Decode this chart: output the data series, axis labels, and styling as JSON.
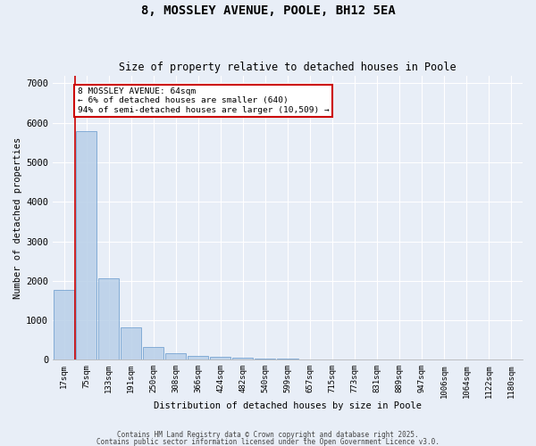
{
  "title1": "8, MOSSLEY AVENUE, POOLE, BH12 5EA",
  "title2": "Size of property relative to detached houses in Poole",
  "xlabel": "Distribution of detached houses by size in Poole",
  "ylabel": "Number of detached properties",
  "categories": [
    "17sqm",
    "75sqm",
    "133sqm",
    "191sqm",
    "250sqm",
    "308sqm",
    "366sqm",
    "424sqm",
    "482sqm",
    "540sqm",
    "599sqm",
    "657sqm",
    "715sqm",
    "773sqm",
    "831sqm",
    "889sqm",
    "947sqm",
    "1006sqm",
    "1064sqm",
    "1122sqm",
    "1180sqm"
  ],
  "values": [
    1780,
    5800,
    2060,
    820,
    330,
    175,
    100,
    70,
    50,
    40,
    30,
    0,
    0,
    0,
    0,
    0,
    0,
    0,
    0,
    0,
    0
  ],
  "bar_color": "#b8cfe8",
  "bar_edge_color": "#6699cc",
  "bar_alpha": 0.85,
  "red_line_color": "#cc0000",
  "annotation_text": "8 MOSSLEY AVENUE: 64sqm\n← 6% of detached houses are smaller (640)\n94% of semi-detached houses are larger (10,509) →",
  "annotation_box_color": "white",
  "annotation_box_edge_color": "#cc0000",
  "ylim": [
    0,
    7200
  ],
  "yticks": [
    0,
    1000,
    2000,
    3000,
    4000,
    5000,
    6000,
    7000
  ],
  "background_color": "#e8eef7",
  "grid_color": "white",
  "footer1": "Contains HM Land Registry data © Crown copyright and database right 2025.",
  "footer2": "Contains public sector information licensed under the Open Government Licence v3.0."
}
